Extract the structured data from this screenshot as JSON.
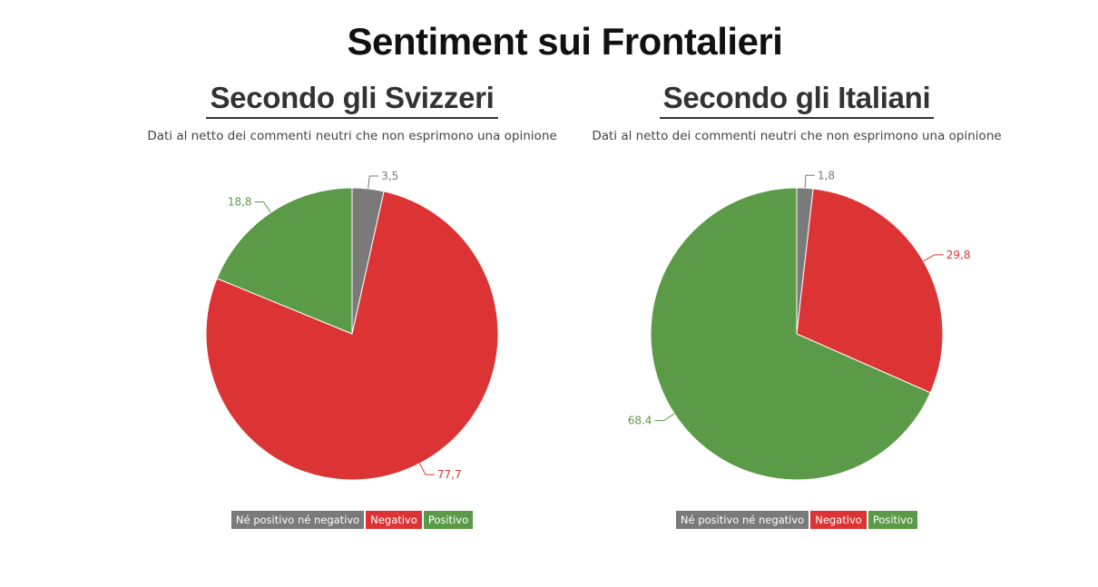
{
  "title": "Sentiment sui Frontalieri",
  "chart_data": [
    {
      "type": "pie",
      "title": "Secondo gli Svizzeri",
      "subtitle": "Dati al netto dei commenti neutri che non esprimono una opinione",
      "slices": [
        {
          "label": "Né positivo né negativo",
          "value": 3.5,
          "value_label": "3,5",
          "color": "#7a7a7a"
        },
        {
          "label": "Negativo",
          "value": 77.7,
          "value_label": "77,7",
          "color": "#dc3434"
        },
        {
          "label": "Positivo",
          "value": 18.8,
          "value_label": "18,8",
          "color": "#5b9b47"
        }
      ],
      "legend": [
        "Né positivo né negativo",
        "Negativo",
        "Positivo"
      ],
      "legend_placement": "bottom"
    },
    {
      "type": "pie",
      "title": "Secondo gli Italiani",
      "subtitle": "Dati al netto dei commenti neutri che non esprimono una opinione",
      "slices": [
        {
          "label": "Né positivo né negativo",
          "value": 1.8,
          "value_label": "1,8",
          "color": "#7a7a7a"
        },
        {
          "label": "Negativo",
          "value": 29.8,
          "value_label": "29,8",
          "color": "#dc3434"
        },
        {
          "label": "Positivo",
          "value": 68.4,
          "value_label": "68.4",
          "color": "#5b9b47"
        }
      ],
      "legend": [
        "Né positivo né negativo",
        "Negativo",
        "Positivo"
      ],
      "legend_placement": "bottom"
    }
  ]
}
